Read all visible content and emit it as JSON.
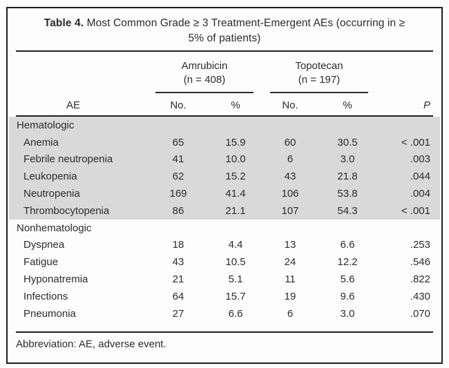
{
  "table": {
    "title_bold": "Table 4.",
    "title_rest": " Most Common Grade ≥ 3 Treatment-Emergent AEs (occurring in ≥ 5% of patients)",
    "col_groups": [
      {
        "label": "Amrubicin",
        "n": "(n = 408)"
      },
      {
        "label": "Topotecan",
        "n": "(n = 197)"
      }
    ],
    "columns": {
      "ae": "AE",
      "no1": "No.",
      "pct1": "%",
      "no2": "No.",
      "pct2": "%",
      "p": "P"
    },
    "sections": [
      {
        "label": "Hematologic",
        "rows": [
          {
            "ae": "Anemia",
            "a_no": "65",
            "a_pct": "15.9",
            "t_no": "60",
            "t_pct": "30.5",
            "p": "< .001"
          },
          {
            "ae": "Febrile neutropenia",
            "a_no": "41",
            "a_pct": "10.0",
            "t_no": "6",
            "t_pct": "3.0",
            "p": ".003"
          },
          {
            "ae": "Leukopenia",
            "a_no": "62",
            "a_pct": "15.2",
            "t_no": "43",
            "t_pct": "21.8",
            "p": ".044"
          },
          {
            "ae": "Neutropenia",
            "a_no": "169",
            "a_pct": "41.4",
            "t_no": "106",
            "t_pct": "53.8",
            "p": ".004"
          },
          {
            "ae": "Thrombocytopenia",
            "a_no": "86",
            "a_pct": "21.1",
            "t_no": "107",
            "t_pct": "54.3",
            "p": "< .001"
          }
        ]
      },
      {
        "label": "Nonhematologic",
        "rows": [
          {
            "ae": "Dyspnea",
            "a_no": "18",
            "a_pct": "4.4",
            "t_no": "13",
            "t_pct": "6.6",
            "p": ".253"
          },
          {
            "ae": "Fatigue",
            "a_no": "43",
            "a_pct": "10.5",
            "t_no": "24",
            "t_pct": "12.2",
            "p": ".546"
          },
          {
            "ae": "Hyponatremia",
            "a_no": "21",
            "a_pct": "5.1",
            "t_no": "11",
            "t_pct": "5.6",
            "p": ".822"
          },
          {
            "ae": "Infections",
            "a_no": "64",
            "a_pct": "15.7",
            "t_no": "19",
            "t_pct": "9.6",
            "p": ".430"
          },
          {
            "ae": "Pneumonia",
            "a_no": "27",
            "a_pct": "6.6",
            "t_no": "6",
            "t_pct": "3.0",
            "p": ".070"
          }
        ]
      }
    ],
    "footnote": "Abbreviation: AE, adverse event."
  },
  "colors": {
    "shading": "#d9d9d9",
    "rule": "#1d1d1d",
    "text": "#2b2b2b",
    "background": "#fdfdfd"
  }
}
